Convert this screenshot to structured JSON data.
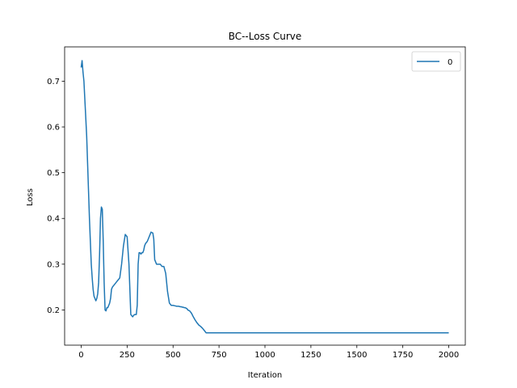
{
  "chart_data": {
    "type": "line",
    "title": "BC--Loss Curve",
    "xlabel": "Iteration",
    "ylabel": "Loss",
    "xlim": [
      -90,
      2090
    ],
    "ylim": [
      0.123,
      0.775
    ],
    "xticks": [
      0,
      250,
      500,
      750,
      1000,
      1250,
      1500,
      1750,
      2000
    ],
    "yticks": [
      0.2,
      0.3,
      0.4,
      0.5,
      0.6,
      0.7
    ],
    "ytick_labels": [
      "0.2",
      "0.3",
      "0.4",
      "0.5",
      "0.6",
      "0.7"
    ],
    "legend": {
      "position": "top-right",
      "entries": [
        "0"
      ]
    },
    "grid": false,
    "series": [
      {
        "name": "0",
        "color": "#1f77b4",
        "x": [
          0,
          5,
          10,
          15,
          20,
          25,
          30,
          35,
          40,
          45,
          50,
          55,
          60,
          65,
          70,
          75,
          80,
          85,
          90,
          95,
          100,
          105,
          110,
          115,
          120,
          125,
          130,
          135,
          140,
          145,
          150,
          155,
          160,
          165,
          170,
          180,
          190,
          200,
          210,
          220,
          230,
          240,
          250,
          260,
          270,
          280,
          290,
          300,
          305,
          310,
          315,
          320,
          325,
          330,
          335,
          340,
          345,
          350,
          360,
          370,
          380,
          390,
          395,
          400,
          410,
          420,
          430,
          440,
          450,
          460,
          470,
          480,
          490,
          500,
          510,
          520,
          530,
          540,
          545,
          550,
          555,
          560,
          565,
          570,
          575,
          580,
          590,
          600,
          610,
          620,
          630,
          640,
          650,
          660,
          670,
          680,
          700,
          750,
          800,
          900,
          1000,
          1100,
          1150,
          1200,
          1250,
          1300,
          1350,
          1400,
          1450,
          1500,
          1600,
          1700,
          1800,
          1900,
          2000
        ],
        "y": [
          0.73,
          0.745,
          0.72,
          0.7,
          0.66,
          0.62,
          0.58,
          0.52,
          0.46,
          0.4,
          0.35,
          0.3,
          0.27,
          0.245,
          0.23,
          0.225,
          0.22,
          0.225,
          0.235,
          0.26,
          0.32,
          0.4,
          0.425,
          0.42,
          0.35,
          0.26,
          0.2,
          0.198,
          0.205,
          0.205,
          0.21,
          0.215,
          0.225,
          0.245,
          0.25,
          0.255,
          0.26,
          0.265,
          0.27,
          0.3,
          0.34,
          0.365,
          0.36,
          0.3,
          0.19,
          0.185,
          0.19,
          0.19,
          0.21,
          0.3,
          0.325,
          0.325,
          0.322,
          0.325,
          0.325,
          0.33,
          0.34,
          0.345,
          0.35,
          0.36,
          0.37,
          0.368,
          0.355,
          0.31,
          0.3,
          0.3,
          0.3,
          0.295,
          0.295,
          0.28,
          0.24,
          0.215,
          0.21,
          0.21,
          0.209,
          0.208,
          0.208,
          0.207,
          0.207,
          0.206,
          0.206,
          0.205,
          0.205,
          0.204,
          0.203,
          0.2,
          0.198,
          0.193,
          0.185,
          0.178,
          0.172,
          0.167,
          0.164,
          0.16,
          0.155,
          0.15,
          0.15,
          0.15,
          0.15,
          0.15,
          0.15,
          0.15,
          0.15,
          0.15,
          0.15,
          0.15,
          0.15,
          0.15,
          0.15,
          0.15,
          0.15,
          0.15,
          0.15,
          0.15,
          0.15
        ]
      }
    ]
  }
}
